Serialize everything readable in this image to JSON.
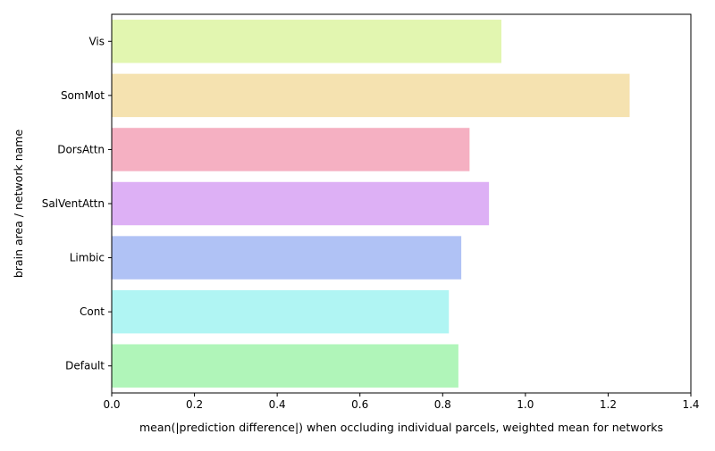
{
  "chart_data": {
    "type": "bar",
    "orientation": "horizontal",
    "xlabel": "mean(|prediction difference|) when occluding individual parcels, weighted mean for networks",
    "ylabel": "brain area / network name",
    "xlim": [
      0,
      1.4
    ],
    "xticks": [
      "0.0",
      "0.2",
      "0.4",
      "0.6",
      "0.8",
      "1.0",
      "1.2",
      "1.4"
    ],
    "grid": false,
    "categories": [
      "Vis",
      "SomMot",
      "DorsAttn",
      "SalVentAttn",
      "Limbic",
      "Cont",
      "Default"
    ],
    "values": [
      0.942,
      1.252,
      0.865,
      0.912,
      0.845,
      0.815,
      0.838
    ],
    "colors": [
      "#e2f6b0",
      "#f5e2b0",
      "#f5b0c2",
      "#ddb0f5",
      "#b0c2f5",
      "#b0f5f3",
      "#b0f5b9"
    ]
  }
}
